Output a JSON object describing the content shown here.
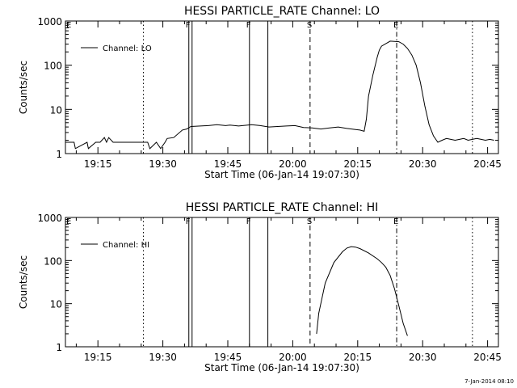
{
  "chart_data": [
    {
      "type": "line",
      "title": "HESSI PARTICLE_RATE Channel: LO",
      "xlabel": "Start Time (06-Jan-14 19:07:30)",
      "ylabel": "Counts/sec",
      "yscale": "log",
      "ylim": [
        1,
        1000
      ],
      "xlim": [
        "19:07:30",
        "20:47:30"
      ],
      "x_ticks": [
        "19:15",
        "19:30",
        "19:45",
        "20:00",
        "20:15",
        "20:30",
        "20:45"
      ],
      "y_ticks": [
        "1",
        "10",
        "100",
        "1000"
      ],
      "legend": {
        "placement": "top-left",
        "entries": [
          "Channel: LO"
        ]
      },
      "series": [
        {
          "name": "Channel: LO",
          "x_minutes_after_1907_30": [
            0,
            2,
            2.3,
            5,
            5.3,
            7,
            8,
            9,
            9.5,
            10,
            11,
            13,
            17,
            19,
            19.5,
            21,
            22,
            23,
            23.5,
            25,
            27,
            28,
            29,
            33,
            35,
            37,
            38,
            40,
            43,
            45,
            47,
            49,
            51,
            53,
            55,
            57,
            59,
            61,
            63,
            65,
            67,
            68,
            69,
            69.5,
            70,
            71,
            72,
            72.5,
            73,
            75,
            77,
            78,
            79,
            80,
            81,
            82,
            83,
            84,
            85,
            86,
            87,
            88,
            89,
            90,
            91,
            92,
            93,
            94,
            95,
            96,
            97,
            98,
            99
          ],
          "y": [
            1.8,
            1.8,
            1.3,
            1.8,
            1.3,
            1.8,
            1.8,
            2.3,
            1.8,
            2.3,
            1.8,
            1.8,
            1.8,
            1.8,
            1.3,
            1.8,
            1.3,
            1.8,
            2.2,
            2.3,
            3.4,
            3.6,
            4.1,
            4.3,
            4.5,
            4.3,
            4.4,
            4.2,
            4.5,
            4.3,
            4.0,
            4.1,
            4.2,
            4.3,
            3.9,
            3.8,
            3.6,
            3.8,
            4.0,
            3.7,
            3.5,
            3.4,
            3.2,
            6,
            20,
            60,
            150,
            220,
            270,
            350,
            340,
            300,
            240,
            170,
            100,
            40,
            12,
            4.5,
            2.5,
            1.8,
            2.0,
            2.2,
            2.1,
            2.0,
            2.1,
            2.2,
            2.0,
            2.1,
            2.2,
            2.1,
            2.0,
            2.1,
            2.0
          ],
          "color": "#000000"
        }
      ],
      "annotations": [
        {
          "x": "19:25:30",
          "style": "dotted",
          "label": ""
        },
        {
          "x": "19:36:00",
          "style": "solid",
          "label": "F"
        },
        {
          "x": "19:36:45",
          "style": "solid",
          "label": ""
        },
        {
          "x": "19:50:00",
          "style": "solid",
          "label": "F"
        },
        {
          "x": "19:54:15",
          "style": "solid",
          "label": ""
        },
        {
          "x": "20:04:00",
          "style": "dashed",
          "label": "S"
        },
        {
          "x": "20:24:00",
          "style": "dashdot",
          "label": "E"
        },
        {
          "x": "20:41:30",
          "style": "dotted",
          "label": ""
        }
      ],
      "edge_label": "E"
    },
    {
      "type": "line",
      "title": "HESSI PARTICLE_RATE Channel: HI",
      "xlabel": "Start Time (06-Jan-14 19:07:30)",
      "ylabel": "Counts/sec",
      "yscale": "log",
      "ylim": [
        1,
        1000
      ],
      "xlim": [
        "19:07:30",
        "20:47:30"
      ],
      "x_ticks": [
        "19:15",
        "19:30",
        "19:45",
        "20:00",
        "20:15",
        "20:30",
        "20:45"
      ],
      "y_ticks": [
        "1",
        "10",
        "100",
        "1000"
      ],
      "legend": {
        "placement": "top-left",
        "entries": [
          "Channel: HI"
        ]
      },
      "series": [
        {
          "name": "Channel: HI",
          "x_minutes_after_1907_30": [
            58,
            58.5,
            60,
            62,
            64,
            65,
            66,
            67,
            68,
            70,
            72,
            73,
            74,
            75,
            76,
            77,
            78,
            79
          ],
          "y": [
            2,
            6,
            30,
            90,
            160,
            195,
            210,
            205,
            190,
            150,
            110,
            90,
            70,
            45,
            22,
            9,
            3.5,
            1.8
          ],
          "color": "#000000"
        }
      ],
      "annotations": [
        {
          "x": "19:25:30",
          "style": "dotted",
          "label": ""
        },
        {
          "x": "19:36:00",
          "style": "solid",
          "label": "F"
        },
        {
          "x": "19:36:45",
          "style": "solid",
          "label": ""
        },
        {
          "x": "19:50:00",
          "style": "solid",
          "label": "F"
        },
        {
          "x": "19:54:15",
          "style": "solid",
          "label": ""
        },
        {
          "x": "20:04:00",
          "style": "dashed",
          "label": "S"
        },
        {
          "x": "20:24:00",
          "style": "dashdot",
          "label": "E"
        },
        {
          "x": "20:41:30",
          "style": "dotted",
          "label": ""
        }
      ],
      "edge_label": "E"
    }
  ],
  "footer": {
    "timestamp": "7-Jan-2014 08:10"
  }
}
